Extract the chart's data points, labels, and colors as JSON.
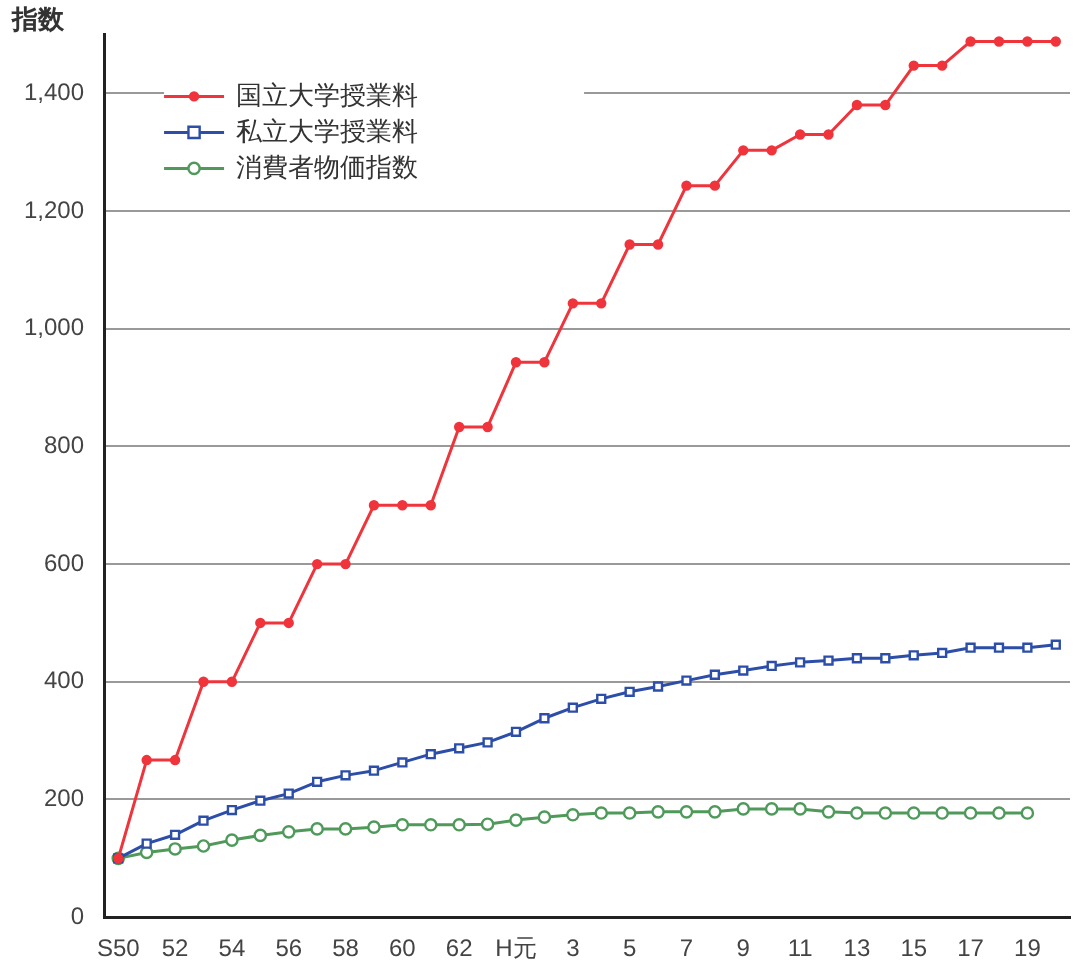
{
  "chart_data": {
    "type": "line",
    "ylabel": "指数",
    "categories": [
      "S50",
      null,
      "52",
      null,
      "54",
      null,
      "56",
      null,
      "58",
      null,
      "60",
      null,
      "62",
      null,
      "H元",
      null,
      "3",
      null,
      "5",
      null,
      "7",
      null,
      "9",
      null,
      "11",
      null,
      "13",
      null,
      "15",
      null,
      "17",
      null,
      "19",
      null
    ],
    "series": [
      {
        "name": "国立大学授業料",
        "color": "#f0343c",
        "marker": "circle",
        "values": [
          100,
          267,
          267,
          400,
          400,
          500,
          500,
          600,
          600,
          700,
          700,
          700,
          833,
          833,
          943,
          943,
          1043,
          1043,
          1143,
          1143,
          1243,
          1243,
          1303,
          1303,
          1330,
          1330,
          1380,
          1380,
          1447,
          1447,
          1488,
          1488,
          1488,
          1488
        ]
      },
      {
        "name": "私立大学授業料",
        "color": "#2c4ea8",
        "marker": "square",
        "values": [
          100,
          125,
          140,
          164,
          182,
          198,
          210,
          230,
          241,
          249,
          263,
          277,
          287,
          297,
          315,
          338,
          356,
          371,
          383,
          392,
          402,
          412,
          419,
          427,
          433,
          436,
          440,
          440,
          445,
          449,
          458,
          458,
          458,
          463
        ]
      },
      {
        "name": "消費者物価指数",
        "color": "#4f9a5a",
        "marker": "circle",
        "values": [
          100,
          110,
          116,
          121,
          131,
          139,
          145,
          150,
          150,
          153,
          157,
          157,
          157,
          158,
          165,
          170,
          174,
          177,
          177,
          179,
          179,
          179,
          184,
          184,
          184,
          179,
          177,
          177,
          177,
          177,
          177,
          177,
          177,
          null
        ]
      }
    ],
    "ylim": [
      0,
      1500
    ],
    "yticks": [
      {
        "value": 0,
        "label": "0"
      },
      {
        "value": 200,
        "label": "200"
      },
      {
        "value": 400,
        "label": "400"
      },
      {
        "value": 600,
        "label": "600"
      },
      {
        "value": 800,
        "label": "800"
      },
      {
        "value": 1000,
        "label": "1,000"
      },
      {
        "value": 1200,
        "label": "1,200"
      },
      {
        "value": 1400,
        "label": "1,400"
      }
    ],
    "grid": "y",
    "legend": "top left",
    "line_style": "solid"
  }
}
